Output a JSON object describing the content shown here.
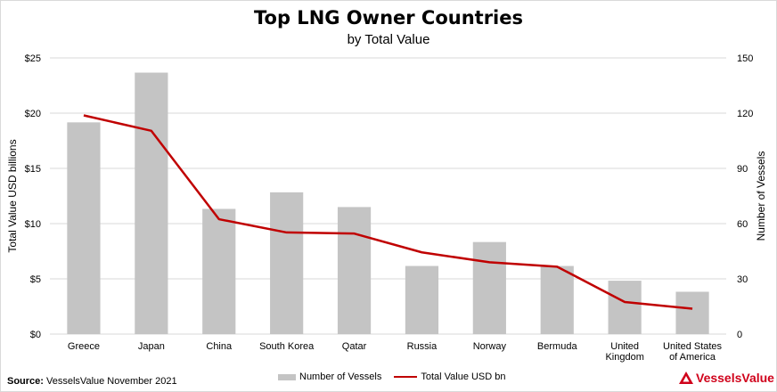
{
  "title": "Top LNG Owner Countries",
  "subtitle": "by Total Value",
  "source_label": "Source:",
  "source_text": " VesselsValue November 2021",
  "brand": "VesselsValue",
  "colors": {
    "bar": "#c4c4c4",
    "line": "#c00000",
    "grid": "#d9d9d9",
    "brand": "#d0021b"
  },
  "chart_data": {
    "type": "bar",
    "categories": [
      "Greece",
      "Japan",
      "China",
      "South Korea",
      "Qatar",
      "Russia",
      "Norway",
      "Bermuda",
      "United Kingdom",
      "United States of America"
    ],
    "category_lines": [
      [
        "Greece"
      ],
      [
        "Japan"
      ],
      [
        "China"
      ],
      [
        "South Korea"
      ],
      [
        "Qatar"
      ],
      [
        "Russia"
      ],
      [
        "Norway"
      ],
      [
        "Bermuda"
      ],
      [
        "United",
        "Kingdom"
      ],
      [
        "United States",
        "of America"
      ]
    ],
    "series": [
      {
        "name": "Number of Vessels",
        "type": "bar",
        "axis": "right",
        "values": [
          115,
          142,
          68,
          77,
          69,
          37,
          50,
          37,
          29,
          23
        ]
      },
      {
        "name": "Total Value USD bn",
        "type": "line",
        "axis": "left",
        "values": [
          19.8,
          18.4,
          10.4,
          9.2,
          9.1,
          7.4,
          6.5,
          6.1,
          2.9,
          2.3
        ]
      }
    ],
    "ylabel": "Total Value USD billions",
    "y2label": "Number of Vessels",
    "ylim": [
      0,
      25
    ],
    "y2lim": [
      0,
      150
    ],
    "yticks": [
      "$0",
      "$5",
      "$10",
      "$15",
      "$20",
      "$25"
    ],
    "y2ticks": [
      "0",
      "30",
      "60",
      "90",
      "120",
      "150"
    ],
    "grid": true,
    "legend": "bottom"
  }
}
